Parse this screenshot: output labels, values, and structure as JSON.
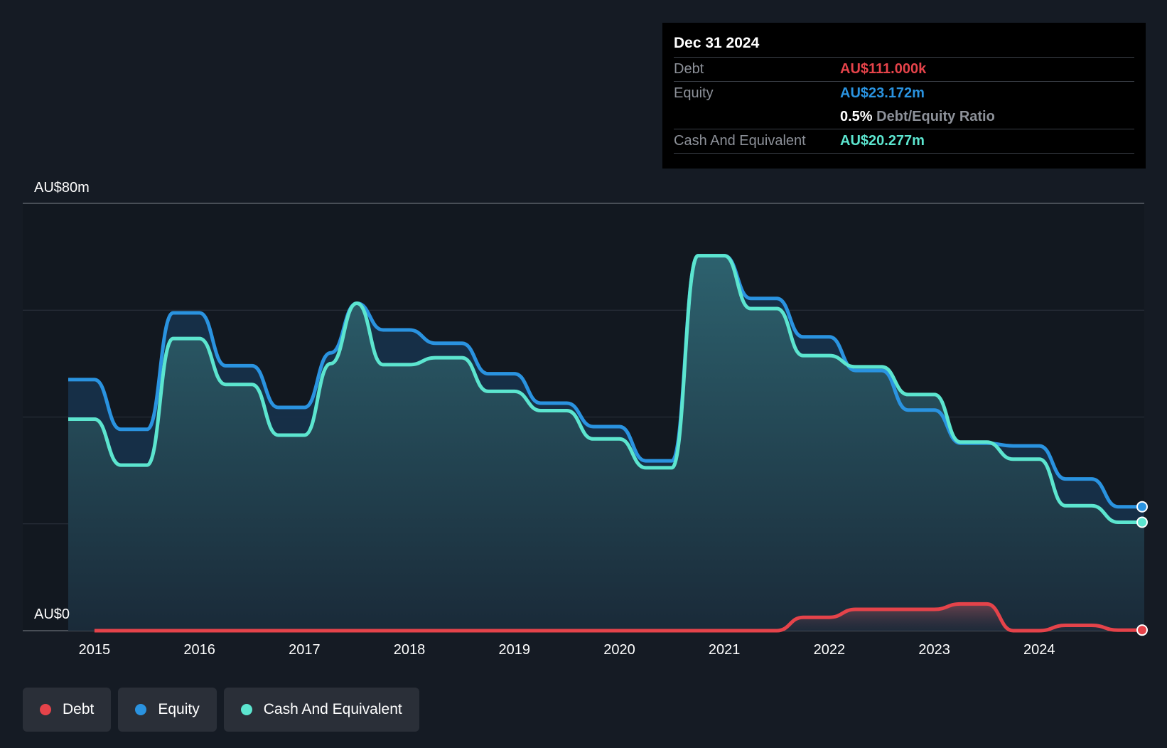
{
  "tooltip": {
    "date": "Dec 31 2024",
    "debt_label": "Debt",
    "debt_value": "AU$111.000k",
    "equity_label": "Equity",
    "equity_value": "AU$23.172m",
    "ratio_value": "0.5%",
    "ratio_label": "Debt/Equity Ratio",
    "cash_label": "Cash And Equivalent",
    "cash_value": "AU$20.277m"
  },
  "legend": {
    "debt": "Debt",
    "equity": "Equity",
    "cash": "Cash And Equivalent"
  },
  "colors": {
    "debt": "#e5434a",
    "equity": "#2a93e0",
    "cash": "#5ce5cf",
    "background": "#151b24"
  },
  "chart_data": {
    "type": "line",
    "ylabel_top": "AU$80m",
    "ylabel_bottom": "AU$0",
    "ylim": [
      0,
      80
    ],
    "xlim": [
      2014.75,
      2025.0
    ],
    "x_ticks": [
      "2015",
      "2016",
      "2017",
      "2018",
      "2019",
      "2020",
      "2021",
      "2022",
      "2023",
      "2024"
    ],
    "grid": true,
    "series": [
      {
        "name": "Debt",
        "x": [
          2015.0,
          2021.5,
          2021.75,
          2022.0,
          2022.25,
          2022.5,
          2022.75,
          2023.0,
          2023.25,
          2023.5,
          2023.75,
          2024.0,
          2024.25,
          2024.5,
          2024.75,
          2025.0
        ],
        "y": [
          0,
          0,
          2.5,
          2.5,
          4.0,
          4.0,
          4.0,
          4.0,
          5.0,
          5.0,
          0,
          0,
          1.0,
          1.0,
          0.1,
          0.11
        ]
      },
      {
        "name": "Equity",
        "x": [
          2014.75,
          2015.0,
          2015.25,
          2015.5,
          2015.75,
          2016.0,
          2016.25,
          2016.5,
          2016.75,
          2017.0,
          2017.25,
          2017.5,
          2017.75,
          2018.0,
          2018.25,
          2018.5,
          2018.75,
          2019.0,
          2019.25,
          2019.5,
          2019.75,
          2020.0,
          2020.25,
          2020.5,
          2020.75,
          2021.0,
          2021.25,
          2021.5,
          2021.75,
          2022.0,
          2022.25,
          2022.5,
          2022.75,
          2023.0,
          2023.25,
          2023.5,
          2023.75,
          2024.0,
          2024.25,
          2024.5,
          2024.75,
          2025.0
        ],
        "y": [
          47,
          47,
          37.7,
          37.7,
          59.5,
          59.5,
          49.6,
          49.6,
          41.8,
          41.8,
          52,
          61.3,
          56.3,
          56.3,
          53.8,
          53.8,
          48.1,
          48.1,
          42.6,
          42.6,
          38.2,
          38.2,
          31.8,
          31.8,
          70.2,
          70.2,
          62.2,
          62.2,
          55,
          55,
          48.7,
          48.7,
          41.3,
          41.3,
          35.1,
          35.1,
          34.6,
          34.6,
          28.4,
          28.4,
          23.2,
          23.2
        ]
      },
      {
        "name": "Cash And Equivalent",
        "x": [
          2014.75,
          2015.0,
          2015.25,
          2015.5,
          2015.75,
          2016.0,
          2016.25,
          2016.5,
          2016.75,
          2017.0,
          2017.25,
          2017.5,
          2017.75,
          2018.0,
          2018.25,
          2018.5,
          2018.75,
          2019.0,
          2019.25,
          2019.5,
          2019.75,
          2020.0,
          2020.25,
          2020.5,
          2020.75,
          2021.0,
          2021.25,
          2021.5,
          2021.75,
          2022.0,
          2022.25,
          2022.5,
          2022.75,
          2023.0,
          2023.25,
          2023.5,
          2023.75,
          2024.0,
          2024.25,
          2024.5,
          2024.75,
          2025.0
        ],
        "y": [
          39.6,
          39.6,
          31,
          31,
          54.7,
          54.7,
          46.1,
          46.1,
          36.6,
          36.6,
          50,
          61.3,
          49.8,
          49.8,
          51.1,
          51.1,
          44.8,
          44.8,
          41.2,
          41.2,
          35.9,
          35.9,
          30.5,
          30.5,
          70.2,
          70.2,
          60.3,
          60.3,
          51.5,
          51.5,
          49.4,
          49.4,
          44.2,
          44.2,
          35.3,
          35.3,
          32.1,
          32.1,
          23.4,
          23.4,
          20.3,
          20.3
        ]
      }
    ]
  }
}
